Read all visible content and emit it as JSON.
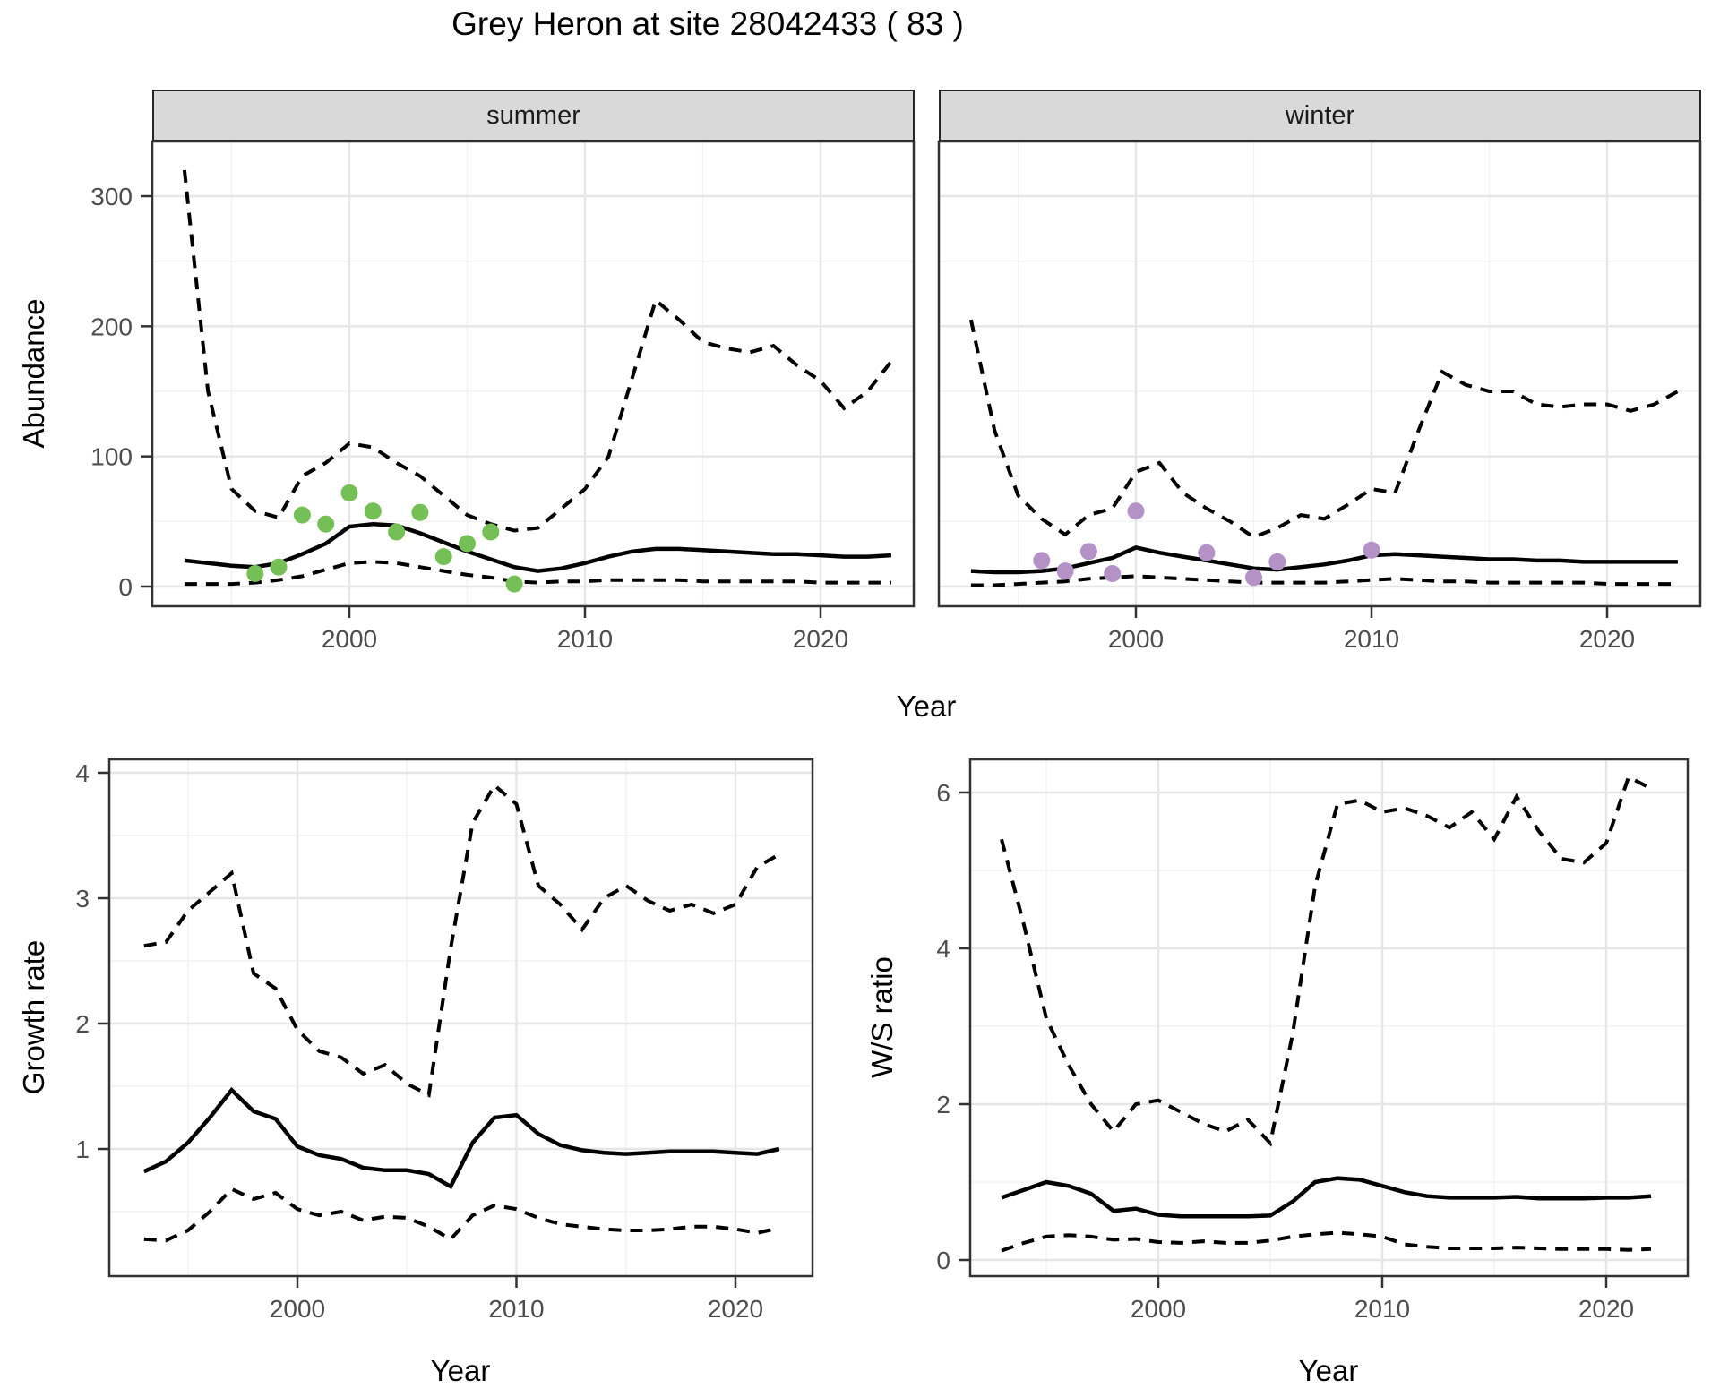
{
  "title": "Grey Heron at site 28042433 ( 83 )",
  "colors": {
    "summer_point": "#74c056",
    "winter_point": "#b592c6",
    "line": "#000000",
    "strip_bg": "#d9d9d9",
    "grid_major": "#e6e6e6",
    "grid_minor": "#f2f2f2",
    "panel_border": "#333333",
    "tick_mark": "#333333",
    "tick_label": "#4d4d4d"
  },
  "chart_data": [
    {
      "type": "line",
      "id": "abundance",
      "xlabel": "Year",
      "ylabel": "Abundance",
      "x_ticks": [
        2000,
        2010,
        2020
      ],
      "y_ticks": [
        0,
        100,
        200,
        300
      ],
      "ylim": [
        -15,
        360
      ],
      "grid": "on",
      "legend": "none",
      "years": [
        1993,
        1994,
        1995,
        1996,
        1997,
        1998,
        1999,
        2000,
        2001,
        2002,
        2003,
        2004,
        2005,
        2006,
        2007,
        2008,
        2009,
        2010,
        2011,
        2012,
        2013,
        2014,
        2015,
        2016,
        2017,
        2018,
        2019,
        2020,
        2021,
        2022,
        2023
      ],
      "facets": [
        {
          "label": "summer",
          "series": [
            {
              "name": "upper_ci",
              "style": "dashed",
              "values": [
                320,
                150,
                75,
                58,
                53,
                85,
                95,
                110,
                107,
                95,
                85,
                70,
                55,
                48,
                43,
                45,
                60,
                75,
                100,
                160,
                220,
                205,
                188,
                183,
                180,
                185,
                170,
                158,
                137,
                150,
                173
              ]
            },
            {
              "name": "lower_ci",
              "style": "dashed",
              "values": [
                2,
                2,
                2,
                3,
                5,
                8,
                13,
                18,
                19,
                18,
                15,
                12,
                9,
                7,
                4,
                3,
                4,
                4,
                5,
                5,
                5,
                5,
                4,
                4,
                4,
                4,
                4,
                3,
                3,
                3,
                3
              ]
            },
            {
              "name": "estimate",
              "style": "solid",
              "values": [
                20,
                18,
                16,
                15,
                18,
                25,
                33,
                46,
                48,
                47,
                41,
                34,
                27,
                21,
                15,
                12,
                14,
                18,
                23,
                27,
                29,
                29,
                28,
                27,
                26,
                25,
                25,
                24,
                23,
                23,
                24
              ]
            }
          ],
          "points": {
            "name": "observed_counts",
            "color_key": "summer_point",
            "data": [
              [
                1996,
                10
              ],
              [
                1997,
                15
              ],
              [
                1998,
                55
              ],
              [
                1999,
                48
              ],
              [
                2000,
                72
              ],
              [
                2001,
                58
              ],
              [
                2002,
                42
              ],
              [
                2003,
                57
              ],
              [
                2004,
                23
              ],
              [
                2005,
                33
              ],
              [
                2006,
                42
              ],
              [
                2007,
                2
              ]
            ]
          }
        },
        {
          "label": "winter",
          "series": [
            {
              "name": "upper_ci",
              "style": "dashed",
              "values": [
                205,
                120,
                70,
                52,
                40,
                55,
                60,
                88,
                95,
                72,
                60,
                50,
                38,
                45,
                55,
                52,
                63,
                75,
                72,
                120,
                165,
                155,
                150,
                150,
                140,
                138,
                140,
                140,
                135,
                140,
                150
              ]
            },
            {
              "name": "lower_ci",
              "style": "dashed",
              "values": [
                1,
                1,
                2,
                3,
                4,
                6,
                7,
                8,
                7,
                6,
                5,
                4,
                3,
                3,
                3,
                3,
                4,
                5,
                6,
                5,
                4,
                4,
                3,
                3,
                3,
                3,
                3,
                2,
                2,
                2,
                2
              ]
            },
            {
              "name": "estimate",
              "style": "solid",
              "values": [
                12,
                11,
                11,
                12,
                14,
                18,
                22,
                30,
                26,
                23,
                20,
                17,
                14,
                13,
                15,
                17,
                20,
                24,
                25,
                24,
                23,
                22,
                21,
                21,
                20,
                20,
                19,
                19,
                19,
                19,
                19
              ]
            }
          ],
          "points": {
            "name": "observed_counts",
            "color_key": "winter_point",
            "data": [
              [
                1996,
                20
              ],
              [
                1997,
                12
              ],
              [
                1998,
                27
              ],
              [
                1999,
                10
              ],
              [
                2000,
                58
              ],
              [
                2003,
                26
              ],
              [
                2005,
                7
              ],
              [
                2006,
                19
              ],
              [
                2010,
                28
              ]
            ]
          }
        }
      ]
    },
    {
      "type": "line",
      "id": "growth_rate",
      "xlabel": "Year",
      "ylabel": "Growth rate",
      "x_ticks": [
        2000,
        2010,
        2020
      ],
      "y_ticks": [
        1,
        2,
        3,
        4
      ],
      "ylim": [
        0,
        4.1
      ],
      "grid": "on",
      "legend": "none",
      "years": [
        1993,
        1994,
        1995,
        1996,
        1997,
        1998,
        1999,
        2000,
        2001,
        2002,
        2003,
        2004,
        2005,
        2006,
        2007,
        2008,
        2009,
        2010,
        2011,
        2012,
        2013,
        2014,
        2015,
        2016,
        2017,
        2018,
        2019,
        2020,
        2021,
        2022
      ],
      "series": [
        {
          "name": "upper_ci",
          "style": "dashed",
          "values": [
            2.62,
            2.65,
            2.9,
            3.05,
            3.2,
            2.4,
            2.28,
            1.95,
            1.78,
            1.73,
            1.6,
            1.67,
            1.52,
            1.43,
            2.6,
            3.6,
            3.9,
            3.75,
            3.1,
            2.95,
            2.75,
            3.0,
            3.1,
            2.98,
            2.9,
            2.95,
            2.88,
            2.95,
            3.25,
            3.35
          ]
        },
        {
          "name": "lower_ci",
          "style": "dashed",
          "values": [
            0.28,
            0.27,
            0.35,
            0.5,
            0.68,
            0.6,
            0.65,
            0.52,
            0.47,
            0.5,
            0.43,
            0.46,
            0.45,
            0.38,
            0.28,
            0.47,
            0.55,
            0.52,
            0.45,
            0.4,
            0.38,
            0.36,
            0.35,
            0.35,
            0.36,
            0.38,
            0.38,
            0.36,
            0.33,
            0.37
          ]
        },
        {
          "name": "estimate",
          "style": "solid",
          "values": [
            0.82,
            0.9,
            1.05,
            1.25,
            1.47,
            1.3,
            1.24,
            1.02,
            0.95,
            0.92,
            0.85,
            0.83,
            0.83,
            0.8,
            0.7,
            1.05,
            1.25,
            1.27,
            1.12,
            1.03,
            0.99,
            0.97,
            0.96,
            0.97,
            0.98,
            0.98,
            0.98,
            0.97,
            0.96,
            1.0
          ]
        }
      ]
    },
    {
      "type": "line",
      "id": "ws_ratio",
      "xlabel": "Year",
      "ylabel": "W/S ratio",
      "x_ticks": [
        2000,
        2010,
        2020
      ],
      "y_ticks": [
        0,
        2,
        4,
        6
      ],
      "ylim": [
        -0.2,
        6.6
      ],
      "grid": "on",
      "legend": "none",
      "years": [
        1993,
        1994,
        1995,
        1996,
        1997,
        1998,
        1999,
        2000,
        2001,
        2002,
        2003,
        2004,
        2005,
        2006,
        2007,
        2008,
        2009,
        2010,
        2011,
        2012,
        2013,
        2014,
        2015,
        2016,
        2017,
        2018,
        2019,
        2020,
        2021,
        2022
      ],
      "series": [
        {
          "name": "upper_ci",
          "style": "dashed",
          "values": [
            5.4,
            4.3,
            3.1,
            2.5,
            2.0,
            1.65,
            2.0,
            2.05,
            1.9,
            1.75,
            1.65,
            1.8,
            1.5,
            2.9,
            4.8,
            5.85,
            5.9,
            5.75,
            5.8,
            5.7,
            5.55,
            5.75,
            5.4,
            5.95,
            5.5,
            5.15,
            5.1,
            5.35,
            6.2,
            6.05
          ]
        },
        {
          "name": "lower_ci",
          "style": "dashed",
          "values": [
            0.12,
            0.22,
            0.3,
            0.32,
            0.3,
            0.26,
            0.27,
            0.23,
            0.22,
            0.24,
            0.22,
            0.22,
            0.25,
            0.3,
            0.33,
            0.35,
            0.33,
            0.3,
            0.2,
            0.17,
            0.15,
            0.15,
            0.15,
            0.16,
            0.15,
            0.14,
            0.14,
            0.14,
            0.13,
            0.14
          ]
        },
        {
          "name": "estimate",
          "style": "solid",
          "values": [
            0.8,
            0.9,
            1.0,
            0.95,
            0.85,
            0.63,
            0.66,
            0.58,
            0.56,
            0.56,
            0.56,
            0.56,
            0.57,
            0.75,
            1.0,
            1.05,
            1.03,
            0.95,
            0.87,
            0.82,
            0.8,
            0.8,
            0.8,
            0.81,
            0.79,
            0.79,
            0.79,
            0.8,
            0.8,
            0.82
          ]
        }
      ]
    }
  ]
}
